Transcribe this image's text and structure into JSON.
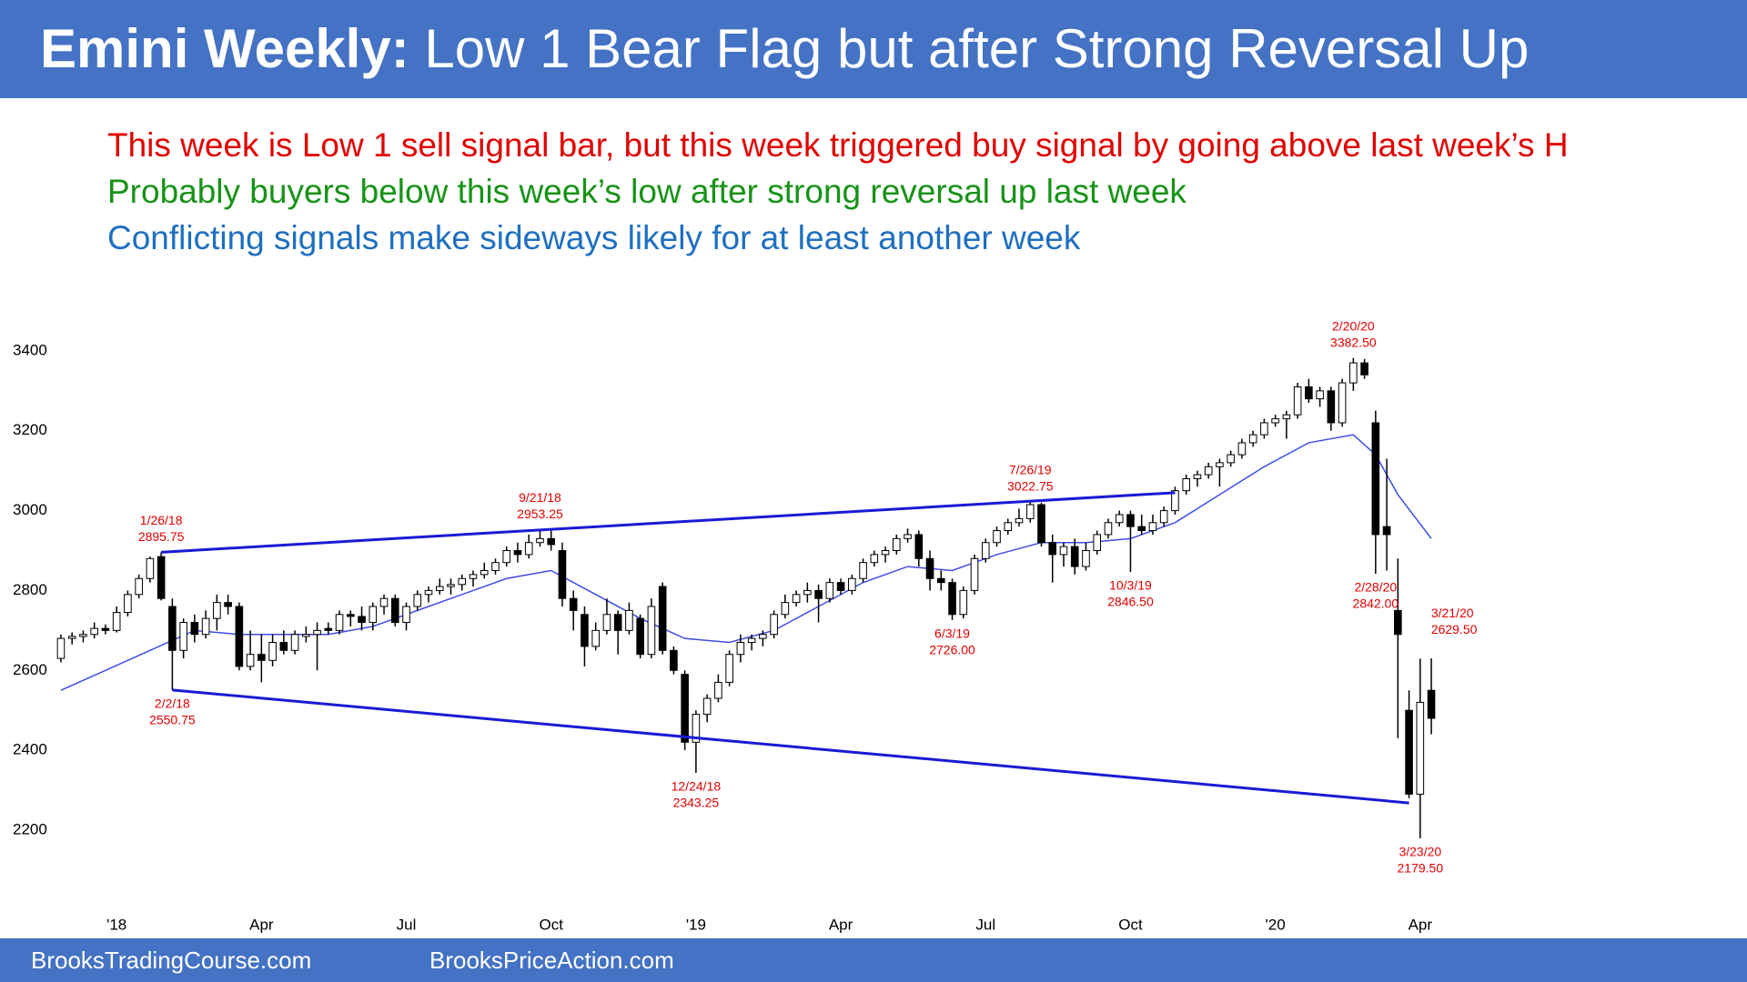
{
  "header": {
    "title_bold": "Emini Weekly:",
    "title_rest": "Low 1 Bear Flag but after Strong Reversal Up",
    "color": "#4472c4"
  },
  "notes": [
    {
      "text": "This week is Low 1 sell signal bar, but this week triggered buy signal by going above last week’s H",
      "color": "#e00000"
    },
    {
      "text": "Probably buyers below this week’s low after strong reversal up last week",
      "color": "#179317"
    },
    {
      "text": "Conflicting signals make sideways likely for at least another week",
      "color": "#1f6fc0"
    }
  ],
  "footer": {
    "left": "BrooksTradingCourse.com",
    "right": "BrooksPriceAction.com"
  },
  "chart_data": {
    "type": "candlestick",
    "x": [
      0,
      1,
      2,
      3,
      4,
      5,
      6,
      7,
      8,
      9,
      10,
      11,
      12,
      13,
      14,
      15,
      16,
      17,
      18,
      19,
      20,
      21,
      22,
      23,
      24,
      25,
      26,
      27,
      28,
      29,
      30,
      31,
      32,
      33,
      34,
      35,
      36,
      37,
      38,
      39,
      40,
      41,
      42,
      43,
      44,
      45,
      46,
      47,
      48,
      49,
      50,
      51,
      52,
      53,
      54,
      55,
      56,
      57,
      58,
      59,
      60,
      61,
      62,
      63,
      64,
      65,
      66,
      67,
      68,
      69,
      70,
      71,
      72,
      73,
      74,
      75,
      76,
      77,
      78,
      79,
      80,
      81,
      82,
      83,
      84,
      85,
      86,
      87,
      88,
      89,
      90,
      91,
      92,
      93,
      94,
      95,
      96,
      97,
      98,
      99,
      100,
      101,
      102,
      103,
      104,
      105,
      106,
      107,
      108,
      109,
      110,
      111,
      112,
      113,
      114,
      115,
      116,
      117,
      118,
      119,
      120,
      121,
      122,
      123
    ],
    "open": [
      2630,
      2680,
      2685,
      2690,
      2705,
      2700,
      2745,
      2790,
      2830,
      2885,
      2760,
      2650,
      2720,
      2690,
      2730,
      2770,
      2760,
      2610,
      2640,
      2625,
      2670,
      2650,
      2685,
      2690,
      2705,
      2700,
      2740,
      2735,
      2720,
      2760,
      2780,
      2720,
      2760,
      2790,
      2800,
      2810,
      2815,
      2830,
      2840,
      2850,
      2870,
      2900,
      2890,
      2920,
      2930,
      2900,
      2780,
      2740,
      2660,
      2700,
      2740,
      2700,
      2730,
      2640,
      2810,
      2650,
      2590,
      2420,
      2490,
      2530,
      2570,
      2640,
      2670,
      2680,
      2690,
      2740,
      2770,
      2790,
      2800,
      2780,
      2820,
      2800,
      2830,
      2870,
      2890,
      2900,
      2930,
      2940,
      2880,
      2830,
      2820,
      2740,
      2800,
      2880,
      2920,
      2950,
      2970,
      2980,
      3015,
      2920,
      2890,
      2910,
      2860,
      2900,
      2940,
      2970,
      2990,
      2960,
      2950,
      2970,
      3000,
      3050,
      3080,
      3090,
      3110,
      3120,
      3140,
      3170,
      3190,
      3220,
      3230,
      3240,
      3310,
      3280,
      3300,
      3220,
      3320,
      3370,
      3220,
      2960,
      2750,
      2500,
      2290,
      2550
    ],
    "high": [
      2690,
      2695,
      2700,
      2720,
      2715,
      2760,
      2800,
      2840,
      2885,
      2895.75,
      2780,
      2730,
      2740,
      2750,
      2790,
      2790,
      2770,
      2700,
      2690,
      2690,
      2700,
      2700,
      2710,
      2720,
      2720,
      2750,
      2750,
      2760,
      2770,
      2790,
      2790,
      2770,
      2800,
      2810,
      2830,
      2830,
      2840,
      2850,
      2870,
      2880,
      2910,
      2920,
      2940,
      2953.25,
      2950,
      2920,
      2800,
      2760,
      2720,
      2780,
      2750,
      2770,
      2740,
      2780,
      2820,
      2660,
      2600,
      2500,
      2540,
      2590,
      2650,
      2690,
      2690,
      2700,
      2750,
      2790,
      2800,
      2820,
      2815,
      2830,
      2830,
      2840,
      2880,
      2900,
      2910,
      2940,
      2955,
      2950,
      2900,
      2850,
      2830,
      2810,
      2890,
      2930,
      2960,
      2980,
      3005,
      3022.75,
      3020,
      2940,
      2920,
      2930,
      2920,
      2950,
      2980,
      3000,
      3000,
      2990,
      2990,
      3010,
      3060,
      3090,
      3100,
      3120,
      3130,
      3150,
      3180,
      3200,
      3230,
      3240,
      3250,
      3320,
      3330,
      3310,
      3310,
      3330,
      3382.5,
      3380,
      3250,
      3130,
      2880,
      2550,
      2629.5,
      2630
    ],
    "low": [
      2620,
      2665,
      2670,
      2680,
      2690,
      2695,
      2735,
      2780,
      2820,
      2775,
      2550.75,
      2630,
      2670,
      2680,
      2700,
      2740,
      2600,
      2600,
      2570,
      2610,
      2640,
      2640,
      2670,
      2600,
      2690,
      2690,
      2710,
      2700,
      2700,
      2740,
      2710,
      2700,
      2750,
      2770,
      2790,
      2790,
      2800,
      2810,
      2830,
      2840,
      2860,
      2870,
      2880,
      2910,
      2900,
      2760,
      2700,
      2610,
      2650,
      2690,
      2640,
      2690,
      2630,
      2630,
      2640,
      2590,
      2400,
      2343.25,
      2470,
      2520,
      2560,
      2620,
      2650,
      2660,
      2680,
      2730,
      2760,
      2770,
      2720,
      2770,
      2790,
      2790,
      2820,
      2860,
      2870,
      2890,
      2920,
      2860,
      2800,
      2800,
      2726,
      2730,
      2790,
      2870,
      2910,
      2940,
      2960,
      2970,
      2910,
      2820,
      2860,
      2840,
      2850,
      2890,
      2930,
      2960,
      2846.5,
      2940,
      2940,
      2960,
      2990,
      3040,
      3060,
      3080,
      3060,
      3110,
      3130,
      3160,
      3180,
      3210,
      3180,
      3230,
      3270,
      3260,
      3200,
      3210,
      3300,
      3330,
      2842,
      2850,
      2430,
      2280,
      2179.5,
      2440
    ],
    "close": [
      2680,
      2685,
      2690,
      2705,
      2700,
      2745,
      2790,
      2830,
      2880,
      2780,
      2650,
      2720,
      2690,
      2730,
      2770,
      2760,
      2610,
      2640,
      2625,
      2670,
      2650,
      2690,
      2690,
      2700,
      2700,
      2740,
      2735,
      2720,
      2760,
      2780,
      2720,
      2760,
      2790,
      2800,
      2810,
      2815,
      2830,
      2840,
      2850,
      2870,
      2900,
      2890,
      2920,
      2930,
      2915,
      2780,
      2750,
      2660,
      2700,
      2740,
      2700,
      2750,
      2640,
      2760,
      2650,
      2600,
      2420,
      2490,
      2530,
      2570,
      2640,
      2670,
      2680,
      2690,
      2740,
      2770,
      2790,
      2800,
      2780,
      2820,
      2800,
      2830,
      2870,
      2890,
      2900,
      2930,
      2940,
      2880,
      2830,
      2820,
      2740,
      2800,
      2880,
      2920,
      2950,
      2970,
      2980,
      3015,
      2920,
      2890,
      2910,
      2860,
      2900,
      2940,
      2970,
      2990,
      2960,
      2950,
      2970,
      3000,
      3050,
      3080,
      3090,
      3110,
      3120,
      3140,
      3170,
      3190,
      3220,
      3230,
      3240,
      3310,
      3280,
      3300,
      3220,
      3320,
      3370,
      3340,
      2940,
      2940,
      2690,
      2290,
      2520,
      2480
    ],
    "colors": {
      "up": "#ffffff",
      "down": "#000000",
      "wick": "#000000"
    },
    "ma": {
      "color": "#3d4de6",
      "x": [
        0,
        4,
        8,
        12,
        16,
        20,
        24,
        28,
        32,
        36,
        40,
        44,
        48,
        52,
        56,
        60,
        64,
        68,
        72,
        76,
        80,
        84,
        88,
        92,
        96,
        100,
        104,
        108,
        112,
        116,
        118,
        120,
        123
      ],
      "values": [
        2550,
        2600,
        2650,
        2700,
        2690,
        2690,
        2690,
        2710,
        2750,
        2790,
        2830,
        2850,
        2790,
        2730,
        2680,
        2670,
        2700,
        2760,
        2820,
        2860,
        2850,
        2890,
        2920,
        2920,
        2930,
        2970,
        3040,
        3110,
        3170,
        3190,
        3140,
        3040,
        2930
      ]
    },
    "trendlines": [
      {
        "color": "#1a1ad6",
        "x": [
          9,
          100
        ],
        "y": [
          2895.75,
          3045
        ]
      },
      {
        "color": "#1a1ad6",
        "x": [
          10,
          121
        ],
        "y": [
          2550.75,
          2268
        ]
      }
    ],
    "annotation_color": "#e00000",
    "annotations": [
      {
        "x": 9,
        "value": 2895.75,
        "date": "1/26/18",
        "value_label": "2895.75",
        "placement": "above"
      },
      {
        "x": 10,
        "value": 2550.75,
        "date": "2/2/18",
        "value_label": "2550.75",
        "placement": "below"
      },
      {
        "x": 43,
        "value": 2953.25,
        "date": "9/21/18",
        "value_label": "2953.25",
        "placement": "above"
      },
      {
        "x": 57,
        "value": 2343.25,
        "date": "12/24/18",
        "value_label": "2343.25",
        "placement": "below"
      },
      {
        "x": 80,
        "value": 2726,
        "date": "6/3/19",
        "value_label": "2726.00",
        "placement": "below"
      },
      {
        "x": 87,
        "value": 3022.75,
        "date": "7/26/19",
        "value_label": "3022.75",
        "placement": "above"
      },
      {
        "x": 96,
        "value": 2846.5,
        "date": "10/3/19",
        "value_label": "2846.50",
        "placement": "below"
      },
      {
        "x": 116,
        "value": 3382.5,
        "date": "2/20/20",
        "value_label": "3382.50",
        "placement": "above"
      },
      {
        "x": 118,
        "value": 2842,
        "date": "2/28/20",
        "value_label": "2842.00",
        "placement": "below"
      },
      {
        "x": 122,
        "value": 2629.5,
        "date": "3/21/20",
        "value_label": "2629.50",
        "placement": "right"
      },
      {
        "x": 122,
        "value": 2179.5,
        "date": "3/23/20",
        "value_label": "2179.50",
        "placement": "below"
      }
    ],
    "xlim": [
      -2.2,
      125.2
    ],
    "xticks": [
      {
        "value": 5,
        "label": "'18"
      },
      {
        "value": 18,
        "label": "Apr"
      },
      {
        "value": 31,
        "label": "Jul"
      },
      {
        "value": 44,
        "label": "Oct"
      },
      {
        "value": 57,
        "label": "'19"
      },
      {
        "value": 70,
        "label": "Apr"
      },
      {
        "value": 83,
        "label": "Jul"
      },
      {
        "value": 96,
        "label": "Oct"
      },
      {
        "value": 109,
        "label": "'20"
      },
      {
        "value": 122,
        "label": "Apr"
      }
    ],
    "ylim": [
      2020,
      3500
    ],
    "yticks": [
      2200,
      2400,
      2600,
      2800,
      3000,
      3200,
      3400
    ]
  }
}
